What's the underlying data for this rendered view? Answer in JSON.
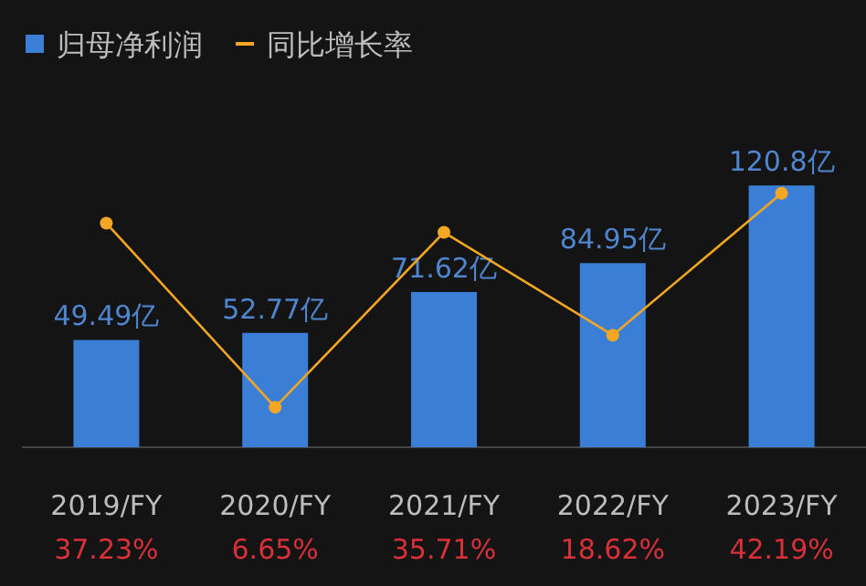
{
  "chart_data": {
    "type": "bar",
    "categories": [
      "2019/FY",
      "2020/FY",
      "2021/FY",
      "2022/FY",
      "2023/FY"
    ],
    "series": [
      {
        "name": "归母净利润",
        "color": "#3a7fd5",
        "values": [
          49.49,
          52.77,
          71.62,
          84.95,
          120.8
        ],
        "value_labels": [
          "49.49亿",
          "52.77亿",
          "71.62亿",
          "84.95亿",
          "120.8亿"
        ]
      },
      {
        "name": "同比增长率",
        "type": "line",
        "axis": "y2",
        "color": "#f5a623",
        "marker": "circle",
        "values": [
          37.23,
          6.65,
          35.71,
          18.62,
          42.19
        ],
        "value_labels": [
          "37.23%",
          "6.65%",
          "35.71%",
          "18.62%",
          "42.19%"
        ]
      }
    ],
    "tick_labels": "x",
    "legend": "top left"
  }
}
